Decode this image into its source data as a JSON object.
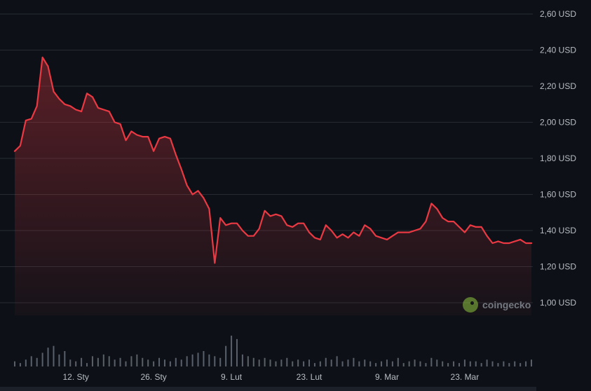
{
  "chart_data": {
    "type": "line",
    "title": "",
    "xlabel": "",
    "ylabel": "",
    "ylim": [
      0.9,
      2.64
    ],
    "y_ticks": [
      {
        "value": 2.6,
        "label": "2,60 USD"
      },
      {
        "value": 2.4,
        "label": "2,40 USD"
      },
      {
        "value": 2.2,
        "label": "2,20 USD"
      },
      {
        "value": 2.0,
        "label": "2,00 USD"
      },
      {
        "value": 1.8,
        "label": "1,80 USD"
      },
      {
        "value": 1.6,
        "label": "1,60 USD"
      },
      {
        "value": 1.4,
        "label": "1,40 USD"
      },
      {
        "value": 1.2,
        "label": "1,20 USD"
      },
      {
        "value": 1.0,
        "label": "1,00 USD"
      }
    ],
    "x_ticks": [
      {
        "index": 11,
        "label": "12. Sty"
      },
      {
        "index": 25,
        "label": "26. Sty"
      },
      {
        "index": 39,
        "label": "9. Lut"
      },
      {
        "index": 53,
        "label": "23. Lut"
      },
      {
        "index": 67,
        "label": "9. Mar"
      },
      {
        "index": 81,
        "label": "23. Mar"
      }
    ],
    "grid": true,
    "line_color": "#ea3943",
    "series": [
      {
        "name": "",
        "values": [
          1.84,
          1.87,
          2.01,
          2.02,
          2.09,
          2.36,
          2.31,
          2.17,
          2.13,
          2.1,
          2.09,
          2.07,
          2.06,
          2.16,
          2.14,
          2.08,
          2.07,
          2.06,
          2.0,
          1.99,
          1.9,
          1.95,
          1.93,
          1.92,
          1.92,
          1.84,
          1.91,
          1.92,
          1.91,
          1.82,
          1.74,
          1.65,
          1.6,
          1.62,
          1.58,
          1.52,
          1.22,
          1.47,
          1.43,
          1.44,
          1.44,
          1.4,
          1.37,
          1.37,
          1.41,
          1.51,
          1.48,
          1.49,
          1.48,
          1.43,
          1.42,
          1.44,
          1.44,
          1.39,
          1.36,
          1.35,
          1.43,
          1.4,
          1.36,
          1.38,
          1.36,
          1.39,
          1.37,
          1.43,
          1.41,
          1.37,
          1.36,
          1.35,
          1.37,
          1.39,
          1.39,
          1.39,
          1.4,
          1.41,
          1.45,
          1.55,
          1.52,
          1.47,
          1.45,
          1.45,
          1.42,
          1.39,
          1.43,
          1.42,
          1.42,
          1.37,
          1.33,
          1.34,
          1.33,
          1.33,
          1.34,
          1.35,
          1.33,
          1.33
        ]
      }
    ],
    "volume": {
      "color": "#5a6069",
      "values": [
        3,
        2,
        4,
        6,
        5,
        8,
        11,
        12,
        7,
        9,
        4,
        3,
        5,
        2,
        6,
        5,
        7,
        6,
        4,
        5,
        3,
        6,
        7,
        5,
        4,
        3,
        5,
        4,
        3,
        5,
        4,
        6,
        7,
        8,
        9,
        7,
        6,
        5,
        12,
        18,
        16,
        7,
        6,
        5,
        4,
        5,
        4,
        3,
        4,
        5,
        3,
        4,
        3,
        4,
        2,
        3,
        5,
        4,
        6,
        3,
        4,
        5,
        3,
        4,
        3,
        2,
        3,
        4,
        3,
        5,
        2,
        3,
        4,
        3,
        2,
        5,
        4,
        3,
        2,
        3,
        2,
        4,
        3,
        3,
        2,
        4,
        3,
        2,
        3,
        2,
        3,
        2,
        3,
        4
      ]
    }
  },
  "watermark": {
    "text": "coingecko",
    "logo": "gecko-logo-icon"
  }
}
